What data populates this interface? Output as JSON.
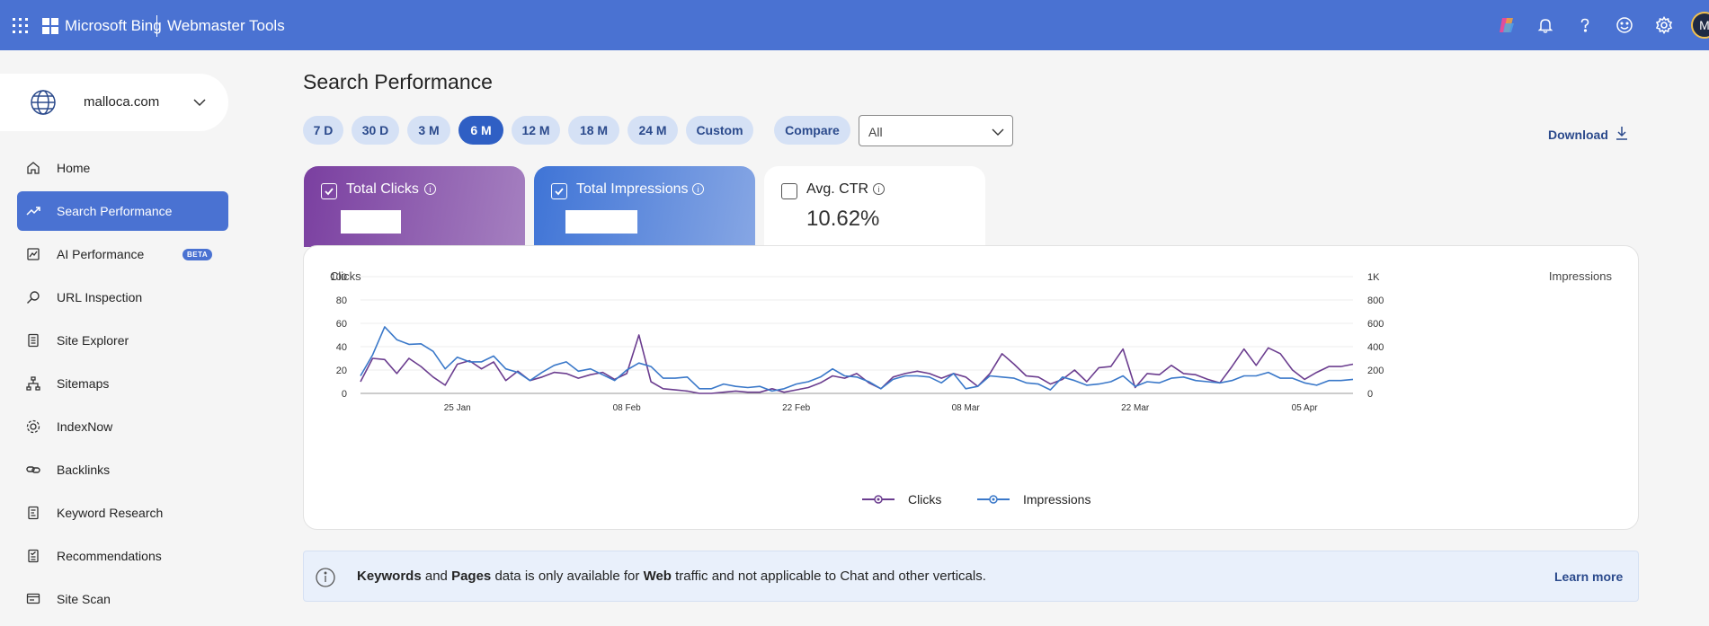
{
  "topbar": {
    "brand": "Microsoft Bing",
    "product": "Webmaster Tools",
    "icons": [
      "apps-waffle-icon",
      "copilot-icon",
      "bell-icon",
      "help-icon",
      "smiley-icon",
      "gear-icon"
    ],
    "avatar_initial": "M",
    "color": "#4a72d2"
  },
  "site": {
    "name": "malloca.com"
  },
  "nav": {
    "items": [
      {
        "label": "Home",
        "icon": "home-icon"
      },
      {
        "label": "Search Performance",
        "icon": "trend-icon",
        "active": true
      },
      {
        "label": "AI Performance",
        "icon": "ai-performance-icon",
        "badge": "BETA"
      },
      {
        "label": "URL Inspection",
        "icon": "search-icon"
      },
      {
        "label": "Site Explorer",
        "icon": "site-explorer-icon"
      },
      {
        "label": "Sitemaps",
        "icon": "sitemap-icon"
      },
      {
        "label": "IndexNow",
        "icon": "indexnow-icon"
      },
      {
        "label": "Backlinks",
        "icon": "link-icon"
      },
      {
        "label": "Keyword Research",
        "icon": "keyword-icon"
      },
      {
        "label": "Recommendations",
        "icon": "recommendations-icon"
      },
      {
        "label": "Site Scan",
        "icon": "site-scan-icon"
      }
    ]
  },
  "main": {
    "title": "Search Performance",
    "ranges": [
      "7 D",
      "30 D",
      "3 M",
      "6 M",
      "12 M",
      "18 M",
      "24 M",
      "Custom"
    ],
    "active_range": "6 M",
    "compare_label": "Compare",
    "filter_value": "All",
    "download_label": "Download"
  },
  "metrics": {
    "clicks": {
      "label": "Total Clicks",
      "checked": true
    },
    "impressions": {
      "label": "Total Impressions",
      "checked": true
    },
    "ctr": {
      "label": "Avg. CTR",
      "value": "10.62%",
      "checked": false
    }
  },
  "chart_data": {
    "type": "line",
    "ylabel_left": "Clicks",
    "ylabel_right": "Impressions",
    "y_left_ticks": [
      "100",
      "80",
      "60",
      "40",
      "20",
      "0"
    ],
    "y_right_ticks": [
      "1K",
      "800",
      "600",
      "400",
      "200",
      "0"
    ],
    "ylim_left": [
      0,
      100
    ],
    "ylim_right": [
      0,
      1000
    ],
    "x_ticks": [
      "25 Jan",
      "08 Feb",
      "22 Feb",
      "08 Mar",
      "22 Mar",
      "05 Apr"
    ],
    "x_tick_index": [
      8,
      22,
      36,
      50,
      64,
      78
    ],
    "grid": true,
    "legend_position": "bottom",
    "series": [
      {
        "name": "Clicks",
        "axis": "left",
        "color": "#6b3d8f",
        "values": [
          10,
          30,
          29,
          17,
          30,
          23,
          14,
          7,
          25,
          28,
          21,
          27,
          11,
          19,
          11,
          14,
          18,
          17,
          13,
          16,
          18,
          12,
          17,
          50,
          10,
          4,
          3,
          2,
          0,
          0,
          1,
          2,
          1,
          1,
          4,
          1,
          3,
          5,
          9,
          15,
          13,
          17,
          9,
          4,
          14,
          17,
          19,
          17,
          13,
          17,
          14,
          6,
          17,
          34,
          25,
          15,
          14,
          8,
          12,
          20,
          10,
          22,
          23,
          38,
          5,
          17,
          16,
          24,
          17,
          16,
          12,
          9,
          23,
          38,
          24,
          39,
          34,
          20,
          12,
          18,
          23,
          23,
          25
        ]
      },
      {
        "name": "Impressions",
        "axis": "right",
        "color": "#3a78c9",
        "values": [
          150,
          330,
          570,
          460,
          420,
          425,
          360,
          210,
          310,
          270,
          270,
          320,
          210,
          180,
          110,
          180,
          240,
          270,
          190,
          210,
          160,
          110,
          200,
          260,
          230,
          130,
          130,
          140,
          40,
          40,
          80,
          60,
          50,
          60,
          20,
          40,
          80,
          100,
          140,
          210,
          150,
          140,
          100,
          40,
          120,
          150,
          150,
          140,
          90,
          170,
          40,
          60,
          150,
          140,
          130,
          90,
          80,
          30,
          140,
          110,
          70,
          80,
          100,
          150,
          60,
          100,
          90,
          130,
          140,
          110,
          100,
          90,
          110,
          150,
          150,
          180,
          130,
          130,
          90,
          70,
          110,
          110,
          120
        ]
      }
    ]
  },
  "banner": {
    "kw": "Keywords",
    "and": "and",
    "pages": "Pages",
    "text1": "data is only available for",
    "web": "Web",
    "text2": "traffic and not applicable to Chat and other verticals.",
    "learn_more": "Learn more"
  }
}
